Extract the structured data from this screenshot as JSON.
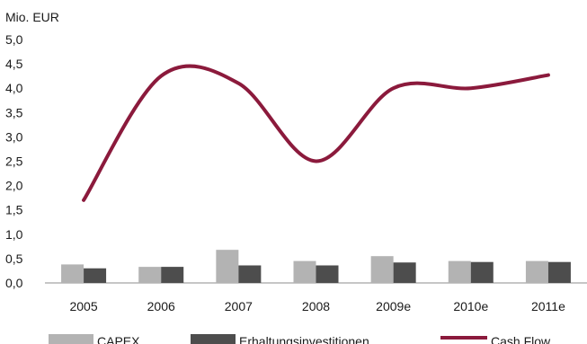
{
  "chart_data": {
    "type": "bar",
    "unit_label": "Mio. EUR",
    "categories": [
      "2005",
      "2006",
      "2007",
      "2008",
      "2009e",
      "2010e",
      "2011e"
    ],
    "series": [
      {
        "name": "CAPEX",
        "kind": "bar",
        "color": "#b3b3b3",
        "values": [
          0.38,
          0.33,
          0.68,
          0.45,
          0.55,
          0.45,
          0.45
        ]
      },
      {
        "name": "Erhaltungsinvestitionen",
        "kind": "bar",
        "color": "#4d4d4d",
        "values": [
          0.3,
          0.33,
          0.36,
          0.36,
          0.42,
          0.43,
          0.43
        ]
      },
      {
        "name": "Cash Flow",
        "kind": "line",
        "color": "#8b1a3c",
        "values": [
          1.7,
          4.25,
          4.1,
          2.5,
          4.0,
          4.0,
          4.27
        ]
      }
    ],
    "ylim": [
      0,
      5
    ],
    "yticks": [
      "0,0",
      "0,5",
      "1,0",
      "1,5",
      "2,0",
      "2,5",
      "3,0",
      "3,5",
      "4,0",
      "4,5",
      "5,0"
    ],
    "grid": false,
    "legend_position": "bottom"
  }
}
